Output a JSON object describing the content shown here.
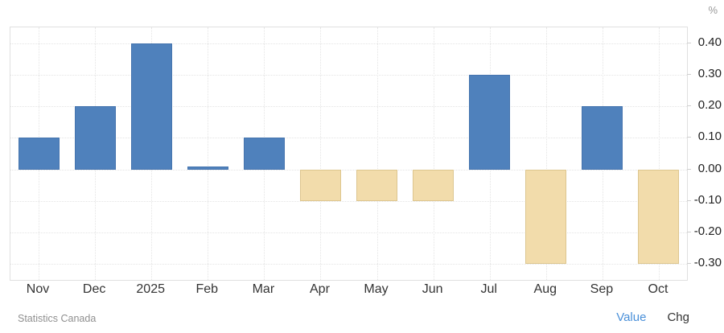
{
  "axis": {
    "unit_label": "%"
  },
  "chart_data": {
    "type": "bar",
    "categories": [
      "Nov",
      "Dec",
      "2025",
      "Feb",
      "Mar",
      "Apr",
      "May",
      "Jun",
      "Jul",
      "Aug",
      "Sep",
      "Oct"
    ],
    "values": [
      0.1,
      0.2,
      0.4,
      0.01,
      0.1,
      -0.1,
      -0.1,
      -0.1,
      0.3,
      -0.3,
      0.2,
      -0.3
    ],
    "y_ticks": [
      "0.40",
      "0.30",
      "0.20",
      "0.10",
      "0.00",
      "-0.10",
      "-0.20",
      "-0.30"
    ],
    "y_tick_values": [
      0.4,
      0.3,
      0.2,
      0.1,
      0.0,
      -0.1,
      -0.2,
      -0.3
    ],
    "ylim": [
      -0.35,
      0.45
    ],
    "ylabel": "%",
    "grid": true,
    "legend_position": "none",
    "positive_color": "#4f81bc",
    "negative_color": "#f2dcab"
  },
  "footer": {
    "source": "Statistics Canada",
    "value_label": "Value",
    "chg_label": "Chg"
  }
}
